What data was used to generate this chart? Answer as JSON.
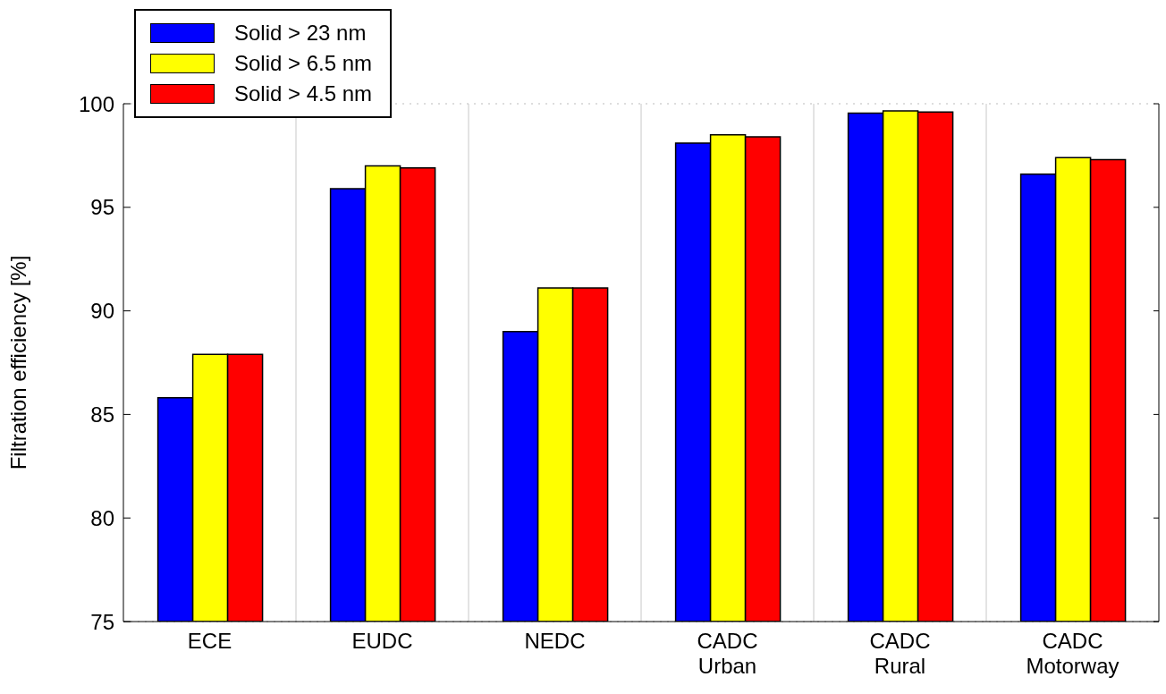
{
  "chart_data": {
    "type": "bar",
    "ylabel": "Filtration efficiency [%]",
    "categories": [
      "ECE",
      "EUDC",
      "NEDC",
      "CADC\nUrban",
      "CADC\nRural",
      "CADC\nMotorway"
    ],
    "series": [
      {
        "name": "Solid > 23 nm",
        "color": "#0000ff",
        "values": [
          85.8,
          95.9,
          89.0,
          98.1,
          99.55,
          96.6
        ]
      },
      {
        "name": "Solid > 6.5 nm",
        "color": "#ffff00",
        "values": [
          87.9,
          97.0,
          91.1,
          98.5,
          99.65,
          97.4
        ]
      },
      {
        "name": "Solid > 4.5 nm",
        "color": "#ff0000",
        "values": [
          87.9,
          96.9,
          91.1,
          98.4,
          99.6,
          97.3
        ]
      }
    ],
    "ylim": [
      75,
      100
    ],
    "yticks": [
      75,
      80,
      85,
      90,
      95,
      100
    ],
    "grid": true,
    "legend": "top left"
  }
}
